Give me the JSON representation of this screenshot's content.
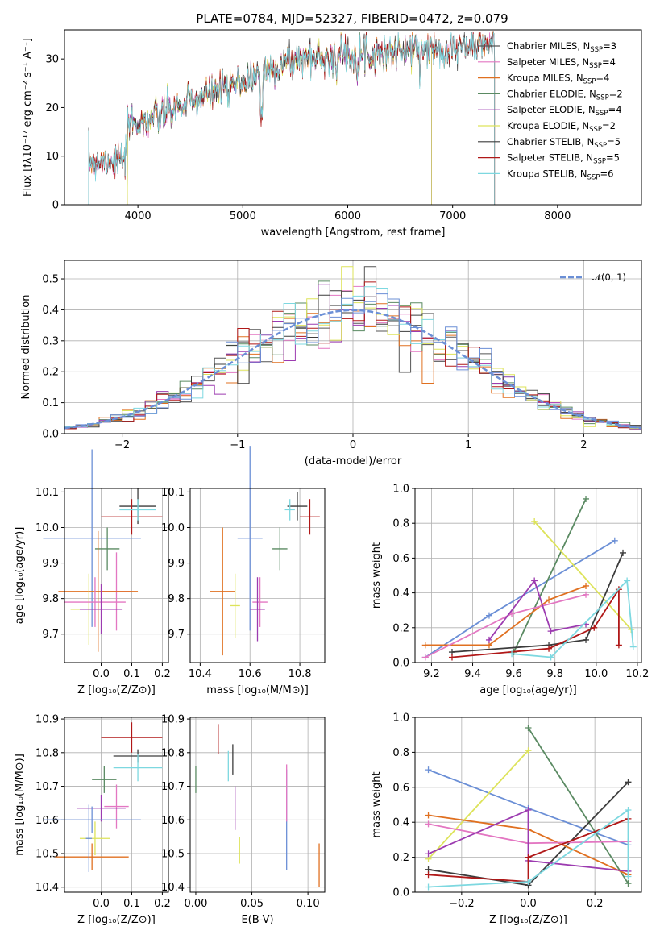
{
  "title": "PLATE=0784, MJD=52327, FIBERID=0472, z=0.079",
  "colors": [
    "#555555",
    "#e377c2",
    "#e07020",
    "#5a8a62",
    "#9c3bb0",
    "#dde35a",
    "#3c3c3c",
    "#b01818",
    "#7dd8e0"
  ],
  "chart_data": [
    {
      "id": "spectrum",
      "type": "line",
      "xlabel": "wavelength [Angstrom, rest frame]",
      "ylabel": "Flux [fλ10⁻¹⁷ erg cm⁻² s⁻¹ A⁻¹]",
      "xlim": [
        3300,
        8800
      ],
      "ylim": [
        0,
        36
      ],
      "xticks": [
        "4000",
        "5000",
        "6000",
        "7000",
        "8000"
      ],
      "yticks": [
        "0",
        "10",
        "20",
        "30"
      ],
      "legend_position": "right",
      "series": [
        {
          "name": "Chabrier MILES, N",
          "sub": "SSP",
          "eq": "=3",
          "color": "#555555",
          "range": [
            3530,
            7400
          ]
        },
        {
          "name": "Salpeter MILES, N",
          "sub": "SSP",
          "eq": "=4",
          "color": "#e377c2",
          "range": [
            3530,
            7400
          ]
        },
        {
          "name": "Kroupa MILES, N",
          "sub": "SSP",
          "eq": "=4",
          "color": "#e07020",
          "range": [
            3530,
            7400
          ]
        },
        {
          "name": "Chabrier ELODIE, N",
          "sub": "SSP",
          "eq": "=2",
          "color": "#5a8a62",
          "range": [
            3900,
            6800
          ]
        },
        {
          "name": "Salpeter ELODIE, N",
          "sub": "SSP",
          "eq": "=4",
          "color": "#9c3bb0",
          "range": [
            3900,
            6800
          ]
        },
        {
          "name": "Kroupa ELODIE, N",
          "sub": "SSP",
          "eq": "=2",
          "color": "#dde35a",
          "range": [
            3900,
            6800
          ]
        },
        {
          "name": "Chabrier STELIB, N",
          "sub": "SSP",
          "eq": "=5",
          "color": "#3c3c3c",
          "range": [
            3530,
            7400
          ]
        },
        {
          "name": "Salpeter STELIB, N",
          "sub": "SSP",
          "eq": "=5",
          "color": "#b01818",
          "range": [
            3530,
            7400
          ]
        },
        {
          "name": "Kroupa STELIB, N",
          "sub": "SSP",
          "eq": "=6",
          "color": "#7dd8e0",
          "range": [
            3530,
            7400
          ]
        }
      ]
    },
    {
      "id": "residuals",
      "type": "histogram",
      "xlabel": "(data-model)/error",
      "ylabel": "Normed distribution",
      "xlim": [
        -2.5,
        2.5
      ],
      "ylim": [
        0,
        0.56
      ],
      "xticks": [
        "−2",
        "−1",
        "0",
        "1",
        "2"
      ],
      "yticks": [
        "0.0",
        "0.1",
        "0.2",
        "0.3",
        "0.4",
        "0.5"
      ],
      "legend": "𝒩(0, 1)",
      "legend_position": "top-right",
      "reference_curve": "gaussian(0,1)",
      "reference_color": "#6b8fd6"
    },
    {
      "id": "Z_age",
      "type": "errorbar",
      "xlabel": "Z [log₁₀(Z/Z⊙)]",
      "ylabel": "age  [log₁₀(age/yr)]",
      "xlim": [
        -0.12,
        0.22
      ],
      "ylim": [
        9.62,
        10.11
      ],
      "xticks": [
        "0.0",
        "0.1",
        "0.2"
      ],
      "yticks": [
        "9.7",
        "9.8",
        "9.9",
        "10.0",
        "10.1"
      ],
      "points": [
        {
          "x": 0.12,
          "y": 10.06,
          "xerr": 0.06,
          "yerr": 0.05,
          "color": "#3c3c3c"
        },
        {
          "x": 0.1,
          "y": 10.03,
          "xerr": 0.1,
          "yerr": 0.05,
          "color": "#b01818"
        },
        {
          "x": 0.12,
          "y": 10.05,
          "xerr": 0.06,
          "yerr": 0.03,
          "color": "#7dd8e0"
        },
        {
          "x": -0.03,
          "y": 9.97,
          "xerr": 0.16,
          "yerr": 0.25,
          "color": "#6b8fd6"
        },
        {
          "x": 0.02,
          "y": 9.94,
          "xerr": 0.04,
          "yerr": 0.06,
          "color": "#5a8a62"
        },
        {
          "x": 0.05,
          "y": 9.82,
          "xerr": 0.05,
          "yerr": 0.11,
          "color": "#e377c2"
        },
        {
          "x": -0.01,
          "y": 9.82,
          "xerr": 0.13,
          "yerr": 0.17,
          "color": "#e07020"
        },
        {
          "x": -0.04,
          "y": 9.77,
          "xerr": 0.06,
          "yerr": 0.1,
          "color": "#dde35a"
        },
        {
          "x": -0.02,
          "y": 9.79,
          "xerr": 0.1,
          "yerr": 0.07,
          "color": "#e377c2"
        },
        {
          "x": 0.0,
          "y": 9.77,
          "xerr": 0.07,
          "yerr": 0.07,
          "color": "#9c3bb0"
        }
      ]
    },
    {
      "id": "mass_age",
      "type": "errorbar",
      "xlabel": "mass [log₁₀(M/M⊙)]",
      "ylabel": "",
      "xlim": [
        10.36,
        10.9
      ],
      "ylim": [
        9.62,
        10.11
      ],
      "xticks": [
        "10.4",
        "10.6",
        "10.8"
      ],
      "yticks": [
        "9.7",
        "9.8",
        "9.9",
        "10.0",
        "10.1"
      ],
      "points": [
        {
          "x": 10.79,
          "y": 10.06,
          "xerr": 0.04,
          "yerr": 0.04,
          "color": "#3c3c3c"
        },
        {
          "x": 10.84,
          "y": 10.03,
          "xerr": 0.04,
          "yerr": 0.05,
          "color": "#b01818"
        },
        {
          "x": 10.76,
          "y": 10.05,
          "xerr": 0.02,
          "yerr": 0.03,
          "color": "#7dd8e0"
        },
        {
          "x": 10.6,
          "y": 9.97,
          "xerr": 0.05,
          "yerr": 0.26,
          "color": "#6b8fd6"
        },
        {
          "x": 10.72,
          "y": 9.94,
          "xerr": 0.03,
          "yerr": 0.06,
          "color": "#5a8a62"
        },
        {
          "x": 10.49,
          "y": 9.82,
          "xerr": 0.05,
          "yerr": 0.18,
          "color": "#e07020"
        },
        {
          "x": 10.54,
          "y": 9.78,
          "xerr": 0.02,
          "yerr": 0.09,
          "color": "#dde35a"
        },
        {
          "x": 10.64,
          "y": 9.79,
          "xerr": 0.03,
          "yerr": 0.07,
          "color": "#e377c2"
        },
        {
          "x": 10.63,
          "y": 9.77,
          "xerr": 0.03,
          "yerr": 0.09,
          "color": "#9c3bb0"
        }
      ]
    },
    {
      "id": "age_weight",
      "type": "line",
      "xlabel": "age  [log₁₀(age/yr)]",
      "ylabel": "mass weight",
      "xlim": [
        9.12,
        10.22
      ],
      "ylim": [
        0,
        1.0
      ],
      "xticks": [
        "9.2",
        "9.4",
        "9.6",
        "9.8",
        "10.0",
        "10.2"
      ],
      "yticks": [
        "0.0",
        "0.2",
        "0.4",
        "0.6",
        "0.8",
        "1.0"
      ],
      "series": [
        {
          "color": "#6b8fd6",
          "x": [
            9.17,
            9.48,
            10.09
          ],
          "y": [
            0.03,
            0.27,
            0.7
          ]
        },
        {
          "color": "#5a8a62",
          "x": [
            9.6,
            9.95
          ],
          "y": [
            0.06,
            0.94
          ]
        },
        {
          "color": "#dde35a",
          "x": [
            9.7,
            10.17
          ],
          "y": [
            0.81,
            0.19
          ]
        },
        {
          "color": "#3c3c3c",
          "x": [
            9.3,
            9.77,
            9.95,
            10.13
          ],
          "y": [
            0.06,
            0.1,
            0.13,
            0.63
          ]
        },
        {
          "color": "#e07020",
          "x": [
            9.17,
            9.48,
            9.77,
            9.95
          ],
          "y": [
            0.1,
            0.1,
            0.36,
            0.44
          ]
        },
        {
          "color": "#e377c2",
          "x": [
            9.17,
            9.59,
            9.95
          ],
          "y": [
            0.03,
            0.28,
            0.39
          ]
        },
        {
          "color": "#9c3bb0",
          "x": [
            9.48,
            9.7,
            9.78,
            9.95
          ],
          "y": [
            0.13,
            0.47,
            0.18,
            0.22
          ]
        },
        {
          "color": "#b01818",
          "x": [
            9.3,
            9.77,
            9.99,
            10.11,
            10.11
          ],
          "y": [
            0.03,
            0.08,
            0.2,
            0.42,
            0.1
          ]
        },
        {
          "color": "#7dd8e0",
          "x": [
            9.59,
            9.78,
            10.15,
            10.18
          ],
          "y": [
            0.05,
            0.03,
            0.47,
            0.09
          ]
        }
      ]
    },
    {
      "id": "Z_mass",
      "type": "errorbar",
      "xlabel": "Z [log₁₀(Z/Z⊙)]",
      "ylabel": "mass [log₁₀(M/M⊙)]",
      "xlim": [
        -0.12,
        0.22
      ],
      "ylim": [
        10.385,
        10.905
      ],
      "xticks": [
        "0.0",
        "0.1",
        "0.2"
      ],
      "yticks": [
        "10.4",
        "10.5",
        "10.6",
        "10.7",
        "10.8",
        "10.9"
      ],
      "points": [
        {
          "x": 0.1,
          "y": 10.845,
          "xerr": 0.1,
          "yerr": 0.045,
          "color": "#b01818"
        },
        {
          "x": 0.12,
          "y": 10.79,
          "xerr": 0.08,
          "yerr": 0.02,
          "color": "#3c3c3c"
        },
        {
          "x": 0.12,
          "y": 10.755,
          "xerr": 0.08,
          "yerr": 0.04,
          "color": "#7dd8e0"
        },
        {
          "x": 0.01,
          "y": 10.72,
          "xerr": 0.04,
          "yerr": 0.04,
          "color": "#5a8a62"
        },
        {
          "x": 0.05,
          "y": 10.64,
          "xerr": 0.04,
          "yerr": 0.065,
          "color": "#e377c2"
        },
        {
          "x": 0.0,
          "y": 10.635,
          "xerr": 0.08,
          "yerr": 0.04,
          "color": "#9c3bb0"
        },
        {
          "x": -0.03,
          "y": 10.6,
          "xerr": 0.16,
          "yerr": 0.04,
          "color": "#6b8fd6"
        },
        {
          "x": -0.02,
          "y": 10.545,
          "xerr": 0.05,
          "yerr": 0.05,
          "color": "#dde35a"
        },
        {
          "x": -0.03,
          "y": 10.49,
          "xerr": 0.12,
          "yerr": 0.04,
          "color": "#e07020"
        },
        {
          "x": -0.04,
          "y": 10.545,
          "xerr": 0.01,
          "yerr": 0.1,
          "color": "#6b8fd6"
        }
      ]
    },
    {
      "id": "ebv_mass",
      "type": "errorbar",
      "xlabel": "E(B-V)",
      "ylabel": "",
      "xlim": [
        -0.005,
        0.115
      ],
      "ylim": [
        10.385,
        10.905
      ],
      "xticks": [
        "0.00",
        "0.05",
        "0.10"
      ],
      "yticks": [
        "10.4",
        "10.5",
        "10.6",
        "10.7",
        "10.8",
        "10.9"
      ],
      "points": [
        {
          "x": 0.0,
          "y": 10.72,
          "xerr": 0,
          "yerr": 0.04,
          "color": "#5a8a62"
        },
        {
          "x": 0.02,
          "y": 10.84,
          "xerr": 0,
          "yerr": 0.045,
          "color": "#b01818"
        },
        {
          "x": 0.029,
          "y": 10.76,
          "xerr": 0,
          "yerr": 0.045,
          "color": "#7dd8e0"
        },
        {
          "x": 0.033,
          "y": 10.78,
          "xerr": 0,
          "yerr": 0.045,
          "color": "#3c3c3c"
        },
        {
          "x": 0.035,
          "y": 10.635,
          "xerr": 0,
          "yerr": 0.065,
          "color": "#9c3bb0"
        },
        {
          "x": 0.039,
          "y": 10.51,
          "xerr": 0,
          "yerr": 0.04,
          "color": "#dde35a"
        },
        {
          "x": 0.081,
          "y": 10.6,
          "xerr": 0,
          "yerr": 0.15,
          "color": "#6b8fd6"
        },
        {
          "x": 0.081,
          "y": 10.68,
          "xerr": 0,
          "yerr": 0.085,
          "color": "#e377c2"
        },
        {
          "x": 0.11,
          "y": 10.465,
          "xerr": 0,
          "yerr": 0.065,
          "color": "#e07020"
        }
      ]
    },
    {
      "id": "Z_weight",
      "type": "line",
      "xlabel": "Z [log₁₀(Z/Z⊙)]",
      "ylabel": "mass weight",
      "xlim": [
        -0.34,
        0.34
      ],
      "ylim": [
        0,
        1.0
      ],
      "xticks": [
        "−0.2",
        "0.0",
        "0.2"
      ],
      "yticks": [
        "0.0",
        "0.2",
        "0.4",
        "0.6",
        "0.8",
        "1.0"
      ],
      "series": [
        {
          "color": "#6b8fd6",
          "x": [
            -0.3,
            0.0,
            0.3
          ],
          "y": [
            0.7,
            0.48,
            0.27
          ]
        },
        {
          "color": "#5a8a62",
          "x": [
            0.0,
            0.3
          ],
          "y": [
            0.94,
            0.05
          ]
        },
        {
          "color": "#dde35a",
          "x": [
            -0.3,
            0.0
          ],
          "y": [
            0.19,
            0.81
          ]
        },
        {
          "color": "#3c3c3c",
          "x": [
            -0.3,
            0.0,
            0.3
          ],
          "y": [
            0.13,
            0.04,
            0.63
          ]
        },
        {
          "color": "#e07020",
          "x": [
            -0.3,
            0.0,
            0.3
          ],
          "y": [
            0.44,
            0.36,
            0.1
          ]
        },
        {
          "color": "#e377c2",
          "x": [
            -0.3,
            0.0,
            0.3
          ],
          "y": [
            0.39,
            0.28,
            0.29
          ]
        },
        {
          "color": "#9c3bb0",
          "x": [
            -0.3,
            0.0,
            0.0,
            0.3
          ],
          "y": [
            0.22,
            0.47,
            0.18,
            0.12
          ]
        },
        {
          "color": "#b01818",
          "x": [
            -0.3,
            0.0,
            0.0,
            0.3
          ],
          "y": [
            0.1,
            0.06,
            0.2,
            0.42
          ]
        },
        {
          "color": "#7dd8e0",
          "x": [
            -0.3,
            0.0,
            0.3,
            0.3
          ],
          "y": [
            0.03,
            0.06,
            0.47,
            0.09
          ]
        }
      ]
    }
  ]
}
